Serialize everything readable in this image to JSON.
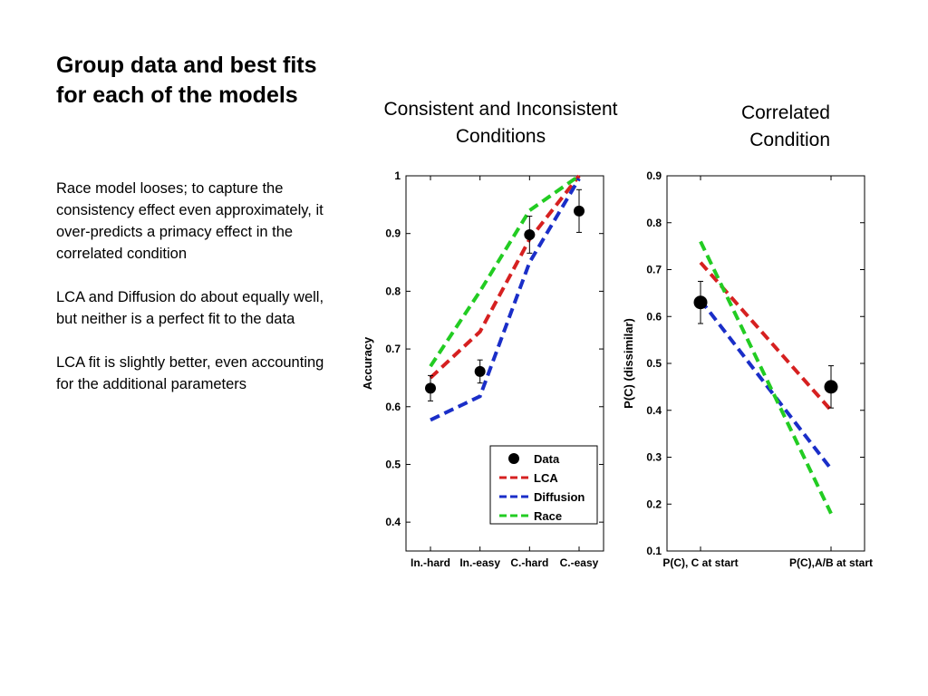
{
  "slide": {
    "title": "Group data and best fits for each of the models",
    "bullets": [
      "Race model looses; to capture the consistency effect even approximately, it over-predicts a primacy effect in the correlated condition",
      "LCA and Diffusion do about equally well, but neither is a perfect fit to the data",
      "LCA fit is slightly better, even accounting for the additional parameters"
    ]
  },
  "chart_data": [
    {
      "type": "line",
      "panel_title": "Consistent and Inconsistent Conditions",
      "ylabel": "Accuracy",
      "categories": [
        "In.-hard",
        "In.-easy",
        "C.-hard",
        "C.-easy"
      ],
      "ylim": [
        0.35,
        1.0
      ],
      "yticks": [
        0.4,
        0.5,
        0.6,
        0.7,
        0.8,
        0.9,
        1
      ],
      "legend_position": "bottom-right",
      "data": {
        "name": "Data",
        "values": [
          0.632,
          0.661,
          0.898,
          0.939
        ],
        "errors": [
          0.022,
          0.02,
          0.032,
          0.037
        ]
      },
      "series": [
        {
          "name": "LCA",
          "color": "#d62020",
          "values": [
            0.65,
            0.73,
            0.89,
            1.0
          ]
        },
        {
          "name": "Diffusion",
          "color": "#1a2ec8",
          "values": [
            0.577,
            0.618,
            0.85,
            0.995
          ]
        },
        {
          "name": "Race",
          "color": "#22cc22",
          "values": [
            0.67,
            0.8,
            0.94,
            1.0
          ]
        }
      ]
    },
    {
      "type": "line",
      "panel_title": "Correlated Condition",
      "ylabel": "P(C) (dissimilar)",
      "categories": [
        "P(C), C at start",
        "P(C),A/B at start"
      ],
      "ylim": [
        0.1,
        0.9
      ],
      "yticks": [
        0.1,
        0.2,
        0.3,
        0.4,
        0.5,
        0.6,
        0.7,
        0.8,
        0.9
      ],
      "data": {
        "name": "Data",
        "values": [
          0.63,
          0.45
        ],
        "errors": [
          0.045,
          0.045
        ]
      },
      "series": [
        {
          "name": "LCA",
          "color": "#d62020",
          "values": [
            0.715,
            0.4
          ]
        },
        {
          "name": "Diffusion",
          "color": "#1a2ec8",
          "values": [
            0.635,
            0.275
          ]
        },
        {
          "name": "Race",
          "color": "#22cc22",
          "values": [
            0.76,
            0.18
          ]
        }
      ]
    }
  ]
}
